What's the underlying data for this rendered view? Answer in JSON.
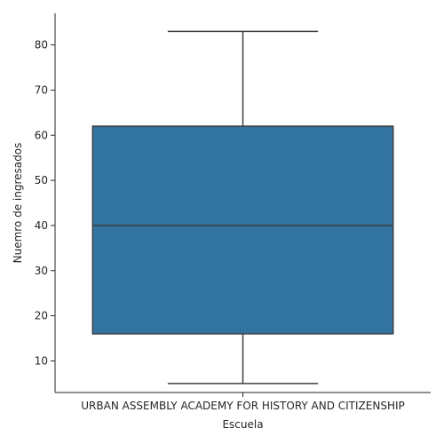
{
  "chart_data": {
    "type": "box",
    "title": "",
    "xlabel": "Escuela",
    "ylabel": "Nuemro de ingresados",
    "categories": [
      "URBAN ASSEMBLY ACADEMY FOR HISTORY AND CITIZENSHIP"
    ],
    "boxes": [
      {
        "category": "URBAN ASSEMBLY ACADEMY FOR HISTORY AND CITIZENSHIP",
        "whisker_low": 5,
        "q1": 16,
        "median": 40,
        "q3": 62,
        "whisker_high": 83
      }
    ],
    "ylim": [
      3,
      87
    ],
    "yticks": [
      10,
      20,
      30,
      40,
      50,
      60,
      70,
      80
    ],
    "box_color": "#3274a1",
    "line_color": "#3f3f3f",
    "grid": false,
    "legend": "none"
  }
}
